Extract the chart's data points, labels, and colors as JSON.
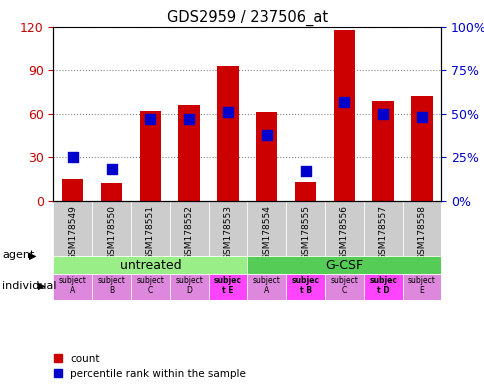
{
  "title": "GDS2959 / 237506_at",
  "samples": [
    "GSM178549",
    "GSM178550",
    "GSM178551",
    "GSM178552",
    "GSM178553",
    "GSM178554",
    "GSM178555",
    "GSM178556",
    "GSM178557",
    "GSM178558"
  ],
  "counts": [
    15,
    12,
    62,
    66,
    93,
    61,
    13,
    118,
    69,
    72
  ],
  "percentile_ranks": [
    25,
    18,
    47,
    47,
    51,
    38,
    17,
    57,
    50,
    48
  ],
  "ylim_left": [
    0,
    120
  ],
  "ylim_right": [
    0,
    100
  ],
  "yticks_left": [
    0,
    30,
    60,
    90,
    120
  ],
  "ytick_labels_left": [
    "0",
    "30",
    "60",
    "90",
    "120"
  ],
  "yticks_right": [
    0,
    25,
    50,
    75,
    100
  ],
  "ytick_labels_right": [
    "0%",
    "25%",
    "50%",
    "75%",
    "100%"
  ],
  "bar_color": "#cc0000",
  "square_color": "#0000cc",
  "grid_color": "#888888",
  "bar_width": 0.55,
  "square_size": 55,
  "agent_groups": [
    {
      "label": "untreated",
      "start": 0,
      "end": 5,
      "color": "#99ee88"
    },
    {
      "label": "G-CSF",
      "start": 5,
      "end": 10,
      "color": "#55cc55"
    }
  ],
  "individuals": [
    {
      "label": "subject\nA",
      "idx": 0,
      "bold": false
    },
    {
      "label": "subject\nB",
      "idx": 1,
      "bold": false
    },
    {
      "label": "subject\nC",
      "idx": 2,
      "bold": false
    },
    {
      "label": "subject\nD",
      "idx": 3,
      "bold": false
    },
    {
      "label": "subjec\nt E",
      "idx": 4,
      "bold": true
    },
    {
      "label": "subject\nA",
      "idx": 5,
      "bold": false
    },
    {
      "label": "subjec\nt B",
      "idx": 6,
      "bold": true
    },
    {
      "label": "subject\nC",
      "idx": 7,
      "bold": false
    },
    {
      "label": "subjec\nt D",
      "idx": 8,
      "bold": true
    },
    {
      "label": "subject\nE",
      "idx": 9,
      "bold": false
    }
  ],
  "indiv_colors": [
    "#dd88dd",
    "#dd88dd",
    "#dd88dd",
    "#dd88dd",
    "#ff44ff",
    "#dd88dd",
    "#ff44ff",
    "#dd88dd",
    "#ff44ff",
    "#dd88dd"
  ],
  "cell_color": "#cccccc",
  "left_tick_color": "#cc0000",
  "right_tick_color": "#0000cc"
}
